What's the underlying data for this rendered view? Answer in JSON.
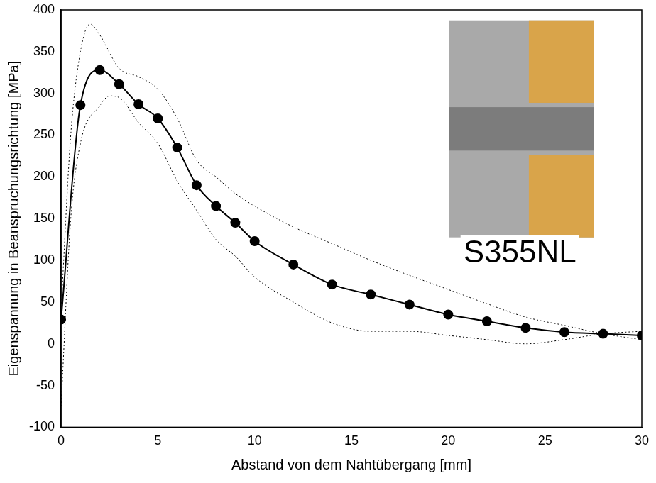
{
  "chart_data": {
    "type": "line",
    "x_label": "Abstand von dem Nahtübergang [mm]",
    "y_label": "Eigenspannung in Beanspruchungsrichtung [MPa]",
    "xlim": [
      0,
      30
    ],
    "xticks": [
      0,
      5,
      10,
      15,
      20,
      25,
      30
    ],
    "ylim": [
      -100,
      400
    ],
    "yticks": [
      -100,
      -50,
      0,
      50,
      100,
      150,
      200,
      250,
      300,
      350,
      400
    ],
    "grid": false,
    "series": [
      {
        "color": "#000000",
        "marker": "circle",
        "line_style": "solid",
        "x": [
          0,
          1,
          2,
          3,
          4,
          5,
          6,
          7,
          8,
          9,
          10,
          12,
          14,
          16,
          18,
          20,
          22,
          24,
          26,
          28,
          30
        ],
        "values": [
          29,
          286,
          328,
          311,
          287,
          270,
          235,
          190,
          165,
          145,
          123,
          95,
          71,
          59,
          47,
          35,
          27,
          19,
          14,
          12,
          10
        ]
      },
      {
        "color": "#000000",
        "marker": "none",
        "line_style": "dotted",
        "x": [
          0,
          0.5,
          1,
          1.5,
          2,
          3,
          4,
          5,
          6,
          7,
          8,
          9,
          10,
          12,
          14,
          16,
          18,
          20,
          22,
          24,
          26,
          28,
          30
        ],
        "values": [
          40,
          250,
          350,
          383,
          370,
          330,
          320,
          305,
          270,
          220,
          200,
          180,
          165,
          140,
          120,
          100,
          82,
          65,
          48,
          32,
          22,
          12,
          5
        ]
      },
      {
        "color": "#000000",
        "marker": "none",
        "line_style": "dotted",
        "x": [
          0,
          0.5,
          1,
          2,
          2.5,
          3,
          4,
          5,
          6,
          7,
          8,
          9,
          10,
          12,
          14,
          16,
          18,
          20,
          22,
          24,
          26,
          28,
          30
        ],
        "values": [
          -75,
          150,
          240,
          285,
          297,
          295,
          265,
          240,
          195,
          160,
          125,
          105,
          80,
          50,
          25,
          15,
          15,
          10,
          5,
          0,
          5,
          12,
          15
        ]
      }
    ],
    "annotations": [
      {
        "text": "S355NL",
        "x": 23.7,
        "y": 108
      }
    ]
  }
}
